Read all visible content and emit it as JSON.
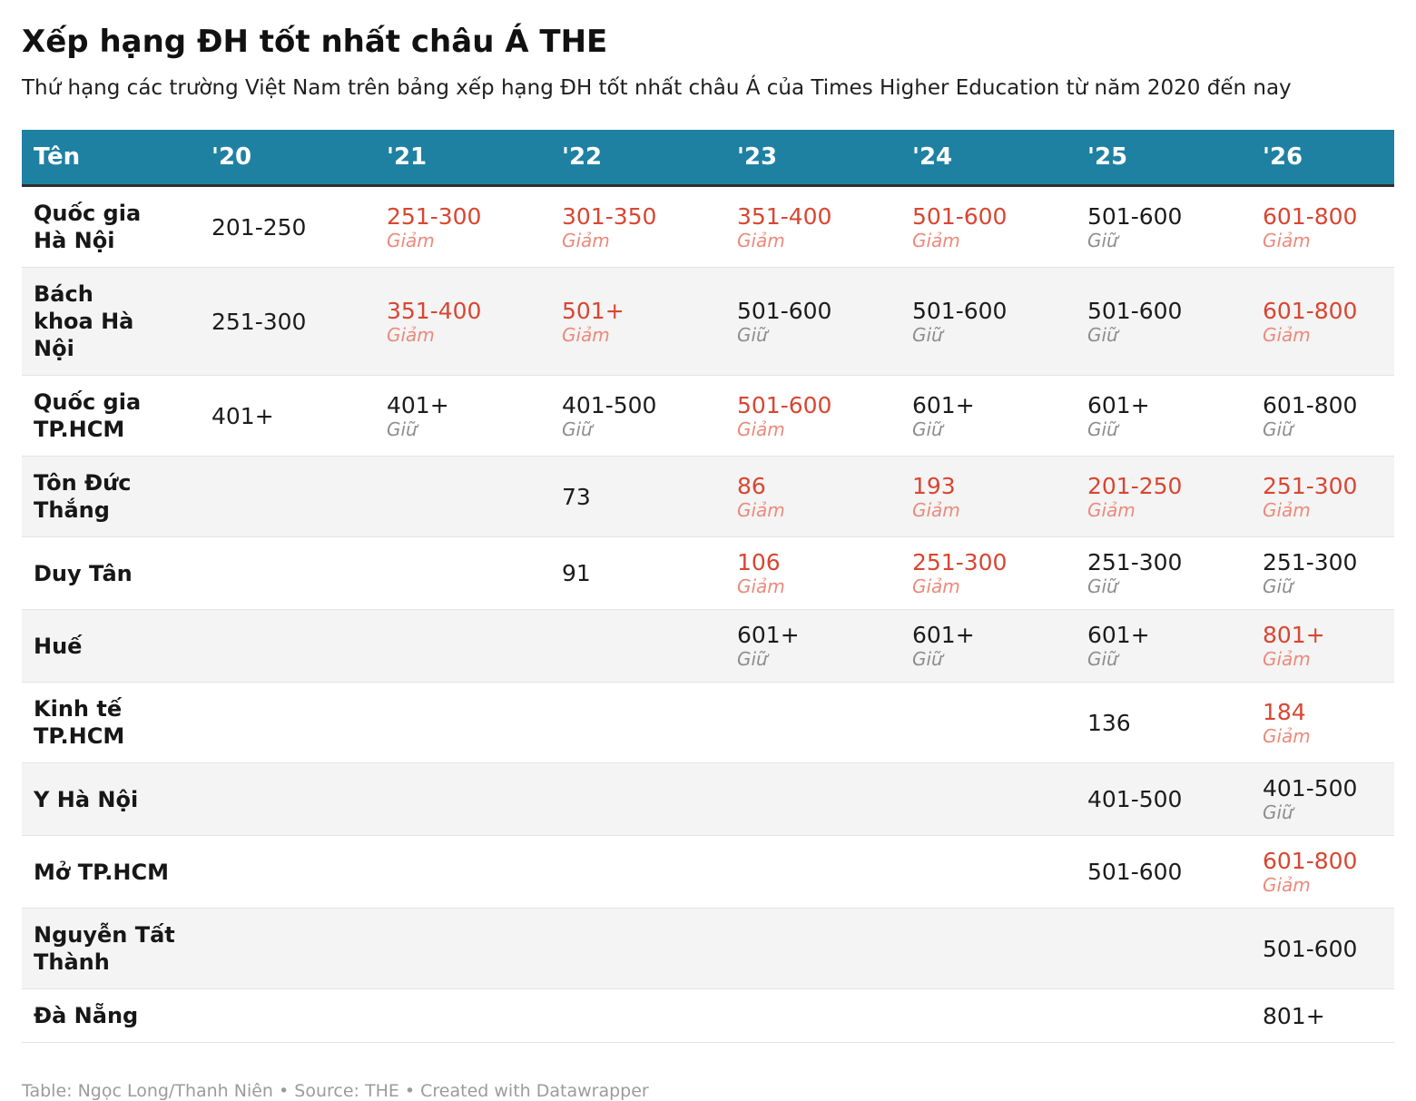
{
  "title": "Xếp hạng ĐH tốt nhất châu Á THE",
  "subtitle": "Thứ hạng các trường Việt Nam trên bảng xếp hạng ĐH tốt nhất châu Á của Times Higher Education từ năm 2020 đến nay",
  "footer": "Table: Ngọc Long/Thanh Niên • Source: THE • Created with Datawrapper",
  "colors": {
    "header_bg": "#1f81a2",
    "negative_value": "#d94632",
    "negative_note": "#ec8a7a",
    "neutral_note": "#8e8e8e"
  },
  "chart_data": {
    "type": "table",
    "title": "Xếp hạng ĐH tốt nhất châu Á THE",
    "columns": [
      "Tên",
      "'20",
      "'21",
      "'22",
      "'23",
      "'24",
      "'25",
      "'26"
    ],
    "rows": [
      {
        "name": "Quốc gia\nHà Nội",
        "cells": [
          {
            "v": "201-250"
          },
          {
            "v": "251-300",
            "n": "Giảm",
            "red": true
          },
          {
            "v": "301-350",
            "n": "Giảm",
            "red": true
          },
          {
            "v": "351-400",
            "n": "Giảm",
            "red": true
          },
          {
            "v": "501-600",
            "n": "Giảm",
            "red": true
          },
          {
            "v": "501-600",
            "n": "Giữ"
          },
          {
            "v": "601-800",
            "n": "Giảm",
            "red": true
          }
        ]
      },
      {
        "name": "Bách\nkhoa Hà\nNội",
        "cells": [
          {
            "v": "251-300"
          },
          {
            "v": "351-400",
            "n": "Giảm",
            "red": true
          },
          {
            "v": "501+",
            "n": "Giảm",
            "red": true
          },
          {
            "v": "501-600",
            "n": "Giữ"
          },
          {
            "v": "501-600",
            "n": "Giữ"
          },
          {
            "v": "501-600",
            "n": "Giữ"
          },
          {
            "v": "601-800",
            "n": "Giảm",
            "red": true
          }
        ]
      },
      {
        "name": "Quốc gia\nTP.HCM",
        "cells": [
          {
            "v": "401+"
          },
          {
            "v": "401+",
            "n": "Giữ"
          },
          {
            "v": "401-500",
            "n": "Giữ"
          },
          {
            "v": "501-600",
            "n": "Giảm",
            "red": true
          },
          {
            "v": "601+",
            "n": "Giữ"
          },
          {
            "v": "601+",
            "n": "Giữ"
          },
          {
            "v": "601-800",
            "n": "Giữ"
          }
        ]
      },
      {
        "name": "Tôn Đức Thắng",
        "cells": [
          null,
          null,
          {
            "v": "73"
          },
          {
            "v": "86",
            "n": "Giảm",
            "red": true
          },
          {
            "v": "193",
            "n": "Giảm",
            "red": true
          },
          {
            "v": "201-250",
            "n": "Giảm",
            "red": true
          },
          {
            "v": "251-300",
            "n": "Giảm",
            "red": true
          }
        ]
      },
      {
        "name": "Duy Tân",
        "cells": [
          null,
          null,
          {
            "v": "91"
          },
          {
            "v": "106",
            "n": "Giảm",
            "red": true
          },
          {
            "v": "251-300",
            "n": "Giảm",
            "red": true
          },
          {
            "v": "251-300",
            "n": "Giữ"
          },
          {
            "v": "251-300",
            "n": "Giữ"
          }
        ]
      },
      {
        "name": "Huế",
        "cells": [
          null,
          null,
          null,
          {
            "v": "601+",
            "n": "Giữ"
          },
          {
            "v": "601+",
            "n": "Giữ"
          },
          {
            "v": "601+",
            "n": "Giữ"
          },
          {
            "v": "801+",
            "n": "Giảm",
            "red": true
          }
        ]
      },
      {
        "name": "Kinh tế TP.HCM",
        "cells": [
          null,
          null,
          null,
          null,
          null,
          {
            "v": "136"
          },
          {
            "v": "184",
            "n": "Giảm",
            "red": true
          }
        ]
      },
      {
        "name": "Y Hà Nội",
        "cells": [
          null,
          null,
          null,
          null,
          null,
          {
            "v": "401-500"
          },
          {
            "v": "401-500",
            "n": "Giữ"
          }
        ]
      },
      {
        "name": "Mở TP.HCM",
        "cells": [
          null,
          null,
          null,
          null,
          null,
          {
            "v": "501-600"
          },
          {
            "v": "601-800",
            "n": "Giảm",
            "red": true
          }
        ]
      },
      {
        "name": "Nguyễn Tất Thành",
        "cells": [
          null,
          null,
          null,
          null,
          null,
          null,
          {
            "v": "501-600"
          }
        ]
      },
      {
        "name": "Đà Nẵng",
        "cells": [
          null,
          null,
          null,
          null,
          null,
          null,
          {
            "v": "801+"
          }
        ]
      }
    ]
  }
}
